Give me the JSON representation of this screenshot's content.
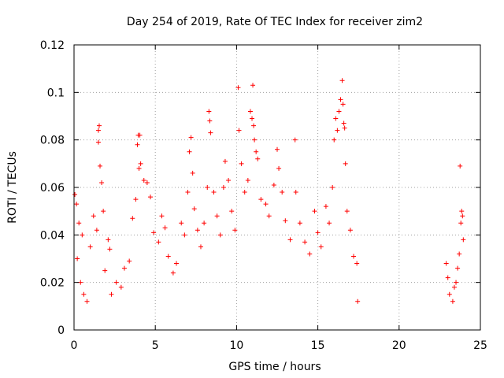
{
  "chart_data": {
    "type": "scatter",
    "title": "Day 254 of 2019, Rate Of TEC Index for receiver zim2",
    "xlabel": "GPS time / hours",
    "ylabel": "ROTI / TECUs",
    "xlim": [
      0,
      25
    ],
    "ylim": [
      0,
      0.12
    ],
    "x_ticks": [
      0,
      5,
      10,
      15,
      20,
      25
    ],
    "x_tick_labels": [
      "0",
      "5",
      "10",
      "15",
      "20",
      "25"
    ],
    "y_ticks": [
      0,
      0.02,
      0.04,
      0.06,
      0.08,
      0.1,
      0.12
    ],
    "y_tick_labels": [
      "0",
      "0.02",
      "0.04",
      "0.06",
      "0.08",
      "0.1",
      "0.12"
    ],
    "grid": true,
    "marker": "plus",
    "color": "#ff0000",
    "series": [
      {
        "points": [
          [
            0.05,
            0.057
          ],
          [
            0.15,
            0.053
          ],
          [
            0.3,
            0.045
          ],
          [
            0.5,
            0.04
          ],
          [
            0.2,
            0.03
          ],
          [
            0.4,
            0.02
          ],
          [
            0.6,
            0.015
          ],
          [
            0.8,
            0.012
          ],
          [
            1.0,
            0.035
          ],
          [
            1.2,
            0.048
          ],
          [
            1.5,
            0.084
          ],
          [
            1.55,
            0.086
          ],
          [
            1.5,
            0.079
          ],
          [
            1.6,
            0.069
          ],
          [
            1.7,
            0.062
          ],
          [
            1.8,
            0.05
          ],
          [
            1.4,
            0.042
          ],
          [
            1.9,
            0.025
          ],
          [
            2.1,
            0.038
          ],
          [
            2.2,
            0.034
          ],
          [
            2.3,
            0.015
          ],
          [
            2.6,
            0.02
          ],
          [
            2.9,
            0.018
          ],
          [
            3.1,
            0.026
          ],
          [
            3.4,
            0.029
          ],
          [
            3.6,
            0.047
          ],
          [
            3.8,
            0.055
          ],
          [
            3.9,
            0.078
          ],
          [
            3.95,
            0.082
          ],
          [
            4.05,
            0.082
          ],
          [
            4.1,
            0.07
          ],
          [
            4.0,
            0.068
          ],
          [
            4.3,
            0.063
          ],
          [
            4.5,
            0.062
          ],
          [
            4.7,
            0.056
          ],
          [
            4.9,
            0.041
          ],
          [
            5.2,
            0.037
          ],
          [
            5.4,
            0.048
          ],
          [
            5.6,
            0.043
          ],
          [
            5.8,
            0.031
          ],
          [
            6.1,
            0.024
          ],
          [
            6.3,
            0.028
          ],
          [
            6.6,
            0.045
          ],
          [
            6.8,
            0.04
          ],
          [
            7.0,
            0.058
          ],
          [
            7.1,
            0.075
          ],
          [
            7.2,
            0.081
          ],
          [
            7.3,
            0.066
          ],
          [
            7.4,
            0.051
          ],
          [
            7.6,
            0.042
          ],
          [
            7.8,
            0.035
          ],
          [
            8.0,
            0.045
          ],
          [
            8.2,
            0.06
          ],
          [
            8.3,
            0.092
          ],
          [
            8.35,
            0.088
          ],
          [
            8.4,
            0.083
          ],
          [
            8.6,
            0.058
          ],
          [
            8.8,
            0.048
          ],
          [
            9.0,
            0.04
          ],
          [
            9.2,
            0.06
          ],
          [
            9.3,
            0.071
          ],
          [
            9.5,
            0.063
          ],
          [
            9.7,
            0.05
          ],
          [
            9.9,
            0.042
          ],
          [
            10.1,
            0.102
          ],
          [
            10.15,
            0.084
          ],
          [
            10.3,
            0.07
          ],
          [
            10.5,
            0.058
          ],
          [
            10.7,
            0.063
          ],
          [
            10.85,
            0.092
          ],
          [
            10.95,
            0.089
          ],
          [
            11.0,
            0.103
          ],
          [
            11.05,
            0.086
          ],
          [
            11.1,
            0.08
          ],
          [
            11.2,
            0.075
          ],
          [
            11.3,
            0.072
          ],
          [
            11.5,
            0.055
          ],
          [
            11.8,
            0.053
          ],
          [
            12.0,
            0.048
          ],
          [
            12.3,
            0.061
          ],
          [
            12.5,
            0.076
          ],
          [
            12.6,
            0.068
          ],
          [
            12.8,
            0.058
          ],
          [
            13.0,
            0.046
          ],
          [
            13.3,
            0.038
          ],
          [
            13.6,
            0.08
          ],
          [
            13.65,
            0.058
          ],
          [
            13.9,
            0.045
          ],
          [
            14.2,
            0.037
          ],
          [
            14.5,
            0.032
          ],
          [
            14.8,
            0.05
          ],
          [
            15.0,
            0.041
          ],
          [
            15.2,
            0.035
          ],
          [
            15.5,
            0.052
          ],
          [
            15.7,
            0.045
          ],
          [
            15.9,
            0.06
          ],
          [
            16.0,
            0.08
          ],
          [
            16.1,
            0.089
          ],
          [
            16.2,
            0.084
          ],
          [
            16.3,
            0.092
          ],
          [
            16.4,
            0.097
          ],
          [
            16.5,
            0.105
          ],
          [
            16.55,
            0.095
          ],
          [
            16.6,
            0.087
          ],
          [
            16.65,
            0.085
          ],
          [
            16.7,
            0.07
          ],
          [
            16.8,
            0.05
          ],
          [
            17.0,
            0.042
          ],
          [
            17.2,
            0.031
          ],
          [
            17.4,
            0.028
          ],
          [
            17.45,
            0.012
          ],
          [
            22.9,
            0.028
          ],
          [
            23.0,
            0.022
          ],
          [
            23.1,
            0.015
          ],
          [
            23.3,
            0.012
          ],
          [
            23.5,
            0.02
          ],
          [
            23.7,
            0.032
          ],
          [
            23.75,
            0.069
          ],
          [
            23.8,
            0.045
          ],
          [
            23.85,
            0.05
          ],
          [
            23.9,
            0.048
          ],
          [
            23.95,
            0.038
          ],
          [
            23.6,
            0.026
          ],
          [
            23.4,
            0.018
          ]
        ]
      }
    ]
  }
}
